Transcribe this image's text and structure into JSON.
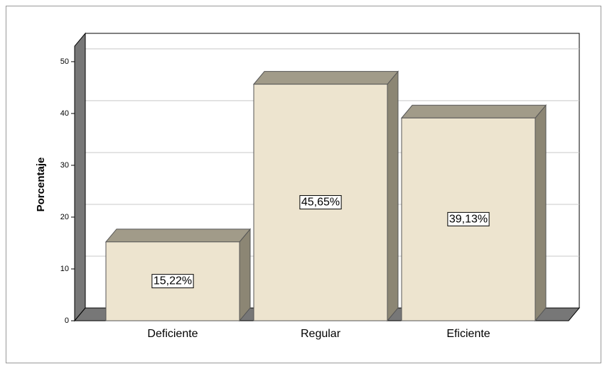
{
  "chart_data": {
    "type": "bar3d",
    "y_label": "Porcentaje",
    "categories": [
      "Deficiente",
      "Regular",
      "Eficiente"
    ],
    "values": [
      15.22,
      45.65,
      39.13
    ],
    "value_labels": [
      "15,22%",
      "45,65%",
      "39,13%"
    ],
    "color": "#ede4cf",
    "ylim": [
      0,
      53
    ],
    "yticks": [
      0,
      10,
      20,
      30,
      40,
      50
    ],
    "grid": true
  }
}
